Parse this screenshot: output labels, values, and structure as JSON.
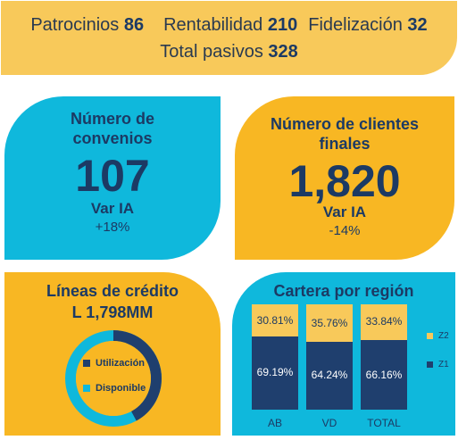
{
  "banner": {
    "patrocinios_label": "Patrocinios",
    "patrocinios_value": "86",
    "rentabilidad_label": "Rentabilidad",
    "rentabilidad_value": "210",
    "fidelizacion_label": "Fidelización",
    "fidelizacion_value": "32",
    "total_label": "Total pasivos",
    "total_value": "328"
  },
  "convenios": {
    "title_line1": "Número de",
    "title_line2": "convenios",
    "value": "107",
    "var_label": "Var IA",
    "var_value": "+18%"
  },
  "clientes": {
    "title_line1": "Número de clientes",
    "title_line2": "finales",
    "value": "1,820",
    "var_label": "Var IA",
    "var_value": "-14%"
  },
  "lineas": {
    "title": "Líneas de crédito",
    "amount": "L 1,798MM",
    "legend_used": "Utilización",
    "legend_available": "Disponible",
    "used_fraction": 0.42
  },
  "cartera": {
    "title": "Cartera por región",
    "legend_z2": "Z2",
    "legend_z1": "Z1"
  },
  "colors": {
    "cyan": "#0fb8dc",
    "amber": "#f8b723",
    "light_amber": "#f8c95a",
    "navy": "#1f3f6e",
    "text": "#1c3a64"
  },
  "chart_data": {
    "type": "bar",
    "stacked": true,
    "title": "Cartera por región",
    "categories": [
      "AB",
      "VD",
      "TOTAL"
    ],
    "series": [
      {
        "name": "Z1",
        "values": [
          69.19,
          64.24,
          66.16
        ],
        "labels": [
          "69.19%",
          "64.24%",
          "66.16%"
        ]
      },
      {
        "name": "Z2",
        "values": [
          30.81,
          35.76,
          33.84
        ],
        "labels": [
          "30.81%",
          "35.76%",
          "33.84%"
        ]
      }
    ],
    "ylim": [
      0,
      100
    ],
    "legend": "right"
  }
}
